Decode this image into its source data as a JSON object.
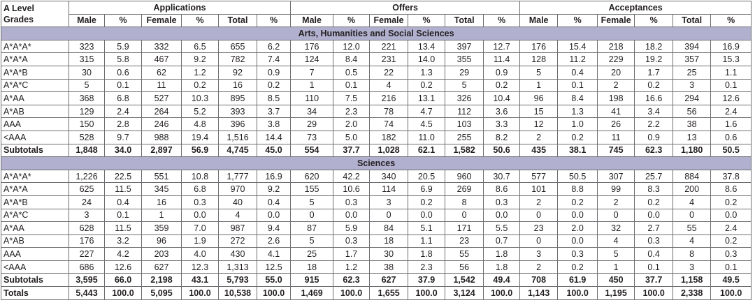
{
  "header": {
    "grade_label_line1": "A Level",
    "grade_label_line2": "Grades",
    "groups": [
      "Applications",
      "Offers",
      "Acceptances"
    ],
    "subcolumns": [
      "Male",
      "%",
      "Female",
      "%",
      "Total",
      "%"
    ]
  },
  "sections": [
    {
      "title": "Arts, Humanities and Social Sciences",
      "rows": [
        [
          "A*A*A*",
          "323",
          "5.9",
          "332",
          "6.5",
          "655",
          "6.2",
          "176",
          "12.0",
          "221",
          "13.4",
          "397",
          "12.7",
          "176",
          "15.4",
          "218",
          "18.2",
          "394",
          "16.9"
        ],
        [
          "A*A*A",
          "315",
          "5.8",
          "467",
          "9.2",
          "782",
          "7.4",
          "124",
          "8.4",
          "231",
          "14.0",
          "355",
          "11.4",
          "128",
          "11.2",
          "229",
          "19.2",
          "357",
          "15.3"
        ],
        [
          "A*A*B",
          "30",
          "0.6",
          "62",
          "1.2",
          "92",
          "0.9",
          "7",
          "0.5",
          "22",
          "1.3",
          "29",
          "0.9",
          "5",
          "0.4",
          "20",
          "1.7",
          "25",
          "1.1"
        ],
        [
          "A*A*C",
          "5",
          "0.1",
          "11",
          "0.2",
          "16",
          "0.2",
          "1",
          "0.1",
          "4",
          "0.2",
          "5",
          "0.2",
          "1",
          "0.1",
          "2",
          "0.2",
          "3",
          "0.1"
        ],
        [
          "A*AA",
          "368",
          "6.8",
          "527",
          "10.3",
          "895",
          "8.5",
          "110",
          "7.5",
          "216",
          "13.1",
          "326",
          "10.4",
          "96",
          "8.4",
          "198",
          "16.6",
          "294",
          "12.6"
        ],
        [
          "A*AB",
          "129",
          "2.4",
          "264",
          "5.2",
          "393",
          "3.7",
          "34",
          "2.3",
          "78",
          "4.7",
          "112",
          "3.6",
          "15",
          "1.3",
          "41",
          "3.4",
          "56",
          "2.4"
        ],
        [
          "AAA",
          "150",
          "2.8",
          "246",
          "4.8",
          "396",
          "3.8",
          "29",
          "2.0",
          "74",
          "4.5",
          "103",
          "3.3",
          "12",
          "1.0",
          "26",
          "2.2",
          "38",
          "1.6"
        ],
        [
          "<AAA",
          "528",
          "9.7",
          "988",
          "19.4",
          "1,516",
          "14.4",
          "73",
          "5.0",
          "182",
          "11.0",
          "255",
          "8.2",
          "2",
          "0.2",
          "11",
          "0.9",
          "13",
          "0.6"
        ]
      ],
      "subtotal": [
        "Subtotals",
        "1,848",
        "34.0",
        "2,897",
        "56.9",
        "4,745",
        "45.0",
        "554",
        "37.7",
        "1,028",
        "62.1",
        "1,582",
        "50.6",
        "435",
        "38.1",
        "745",
        "62.3",
        "1,180",
        "50.5"
      ]
    },
    {
      "title": "Sciences",
      "rows": [
        [
          "A*A*A*",
          "1,226",
          "22.5",
          "551",
          "10.8",
          "1,777",
          "16.9",
          "620",
          "42.2",
          "340",
          "20.5",
          "960",
          "30.7",
          "577",
          "50.5",
          "307",
          "25.7",
          "884",
          "37.8"
        ],
        [
          "A*A*A",
          "625",
          "11.5",
          "345",
          "6.8",
          "970",
          "9.2",
          "155",
          "10.6",
          "114",
          "6.9",
          "269",
          "8.6",
          "101",
          "8.8",
          "99",
          "8.3",
          "200",
          "8.6"
        ],
        [
          "A*A*B",
          "24",
          "0.4",
          "16",
          "0.3",
          "40",
          "0.4",
          "5",
          "0.3",
          "3",
          "0.2",
          "8",
          "0.3",
          "2",
          "0.2",
          "2",
          "0.2",
          "4",
          "0.2"
        ],
        [
          "A*A*C",
          "3",
          "0.1",
          "1",
          "0.0",
          "4",
          "0.0",
          "0",
          "0.0",
          "0",
          "0.0",
          "0",
          "0.0",
          "0",
          "0.0",
          "0",
          "0.0",
          "0",
          "0.0"
        ],
        [
          "A*AA",
          "628",
          "11.5",
          "359",
          "7.0",
          "987",
          "9.4",
          "87",
          "5.9",
          "84",
          "5.1",
          "171",
          "5.5",
          "23",
          "2.0",
          "32",
          "2.7",
          "55",
          "2.4"
        ],
        [
          "A*AB",
          "176",
          "3.2",
          "96",
          "1.9",
          "272",
          "2.6",
          "5",
          "0.3",
          "18",
          "1.1",
          "23",
          "0.7",
          "0",
          "0.0",
          "4",
          "0.3",
          "4",
          "0.2"
        ],
        [
          "AAA",
          "227",
          "4.2",
          "203",
          "4.0",
          "430",
          "4.1",
          "25",
          "1.7",
          "30",
          "1.8",
          "55",
          "1.8",
          "3",
          "0.3",
          "5",
          "0.4",
          "8",
          "0.3"
        ],
        [
          "<AAA",
          "686",
          "12.6",
          "627",
          "12.3",
          "1,313",
          "12.5",
          "18",
          "1.2",
          "38",
          "2.3",
          "56",
          "1.8",
          "2",
          "0.2",
          "1",
          "0.1",
          "3",
          "0.1"
        ]
      ],
      "subtotal": [
        "Subtotals",
        "3,595",
        "66.0",
        "2,198",
        "43.1",
        "5,793",
        "55.0",
        "915",
        "62.3",
        "627",
        "37.9",
        "1,542",
        "49.4",
        "708",
        "61.9",
        "450",
        "37.7",
        "1,158",
        "49.5"
      ]
    }
  ],
  "totals": [
    "Totals",
    "5,443",
    "100.0",
    "5,095",
    "100.0",
    "10,538",
    "100.0",
    "1,469",
    "100.0",
    "1,655",
    "100.0",
    "3,124",
    "100.0",
    "1,143",
    "100.0",
    "1,195",
    "100.0",
    "2,338",
    "100.0"
  ]
}
